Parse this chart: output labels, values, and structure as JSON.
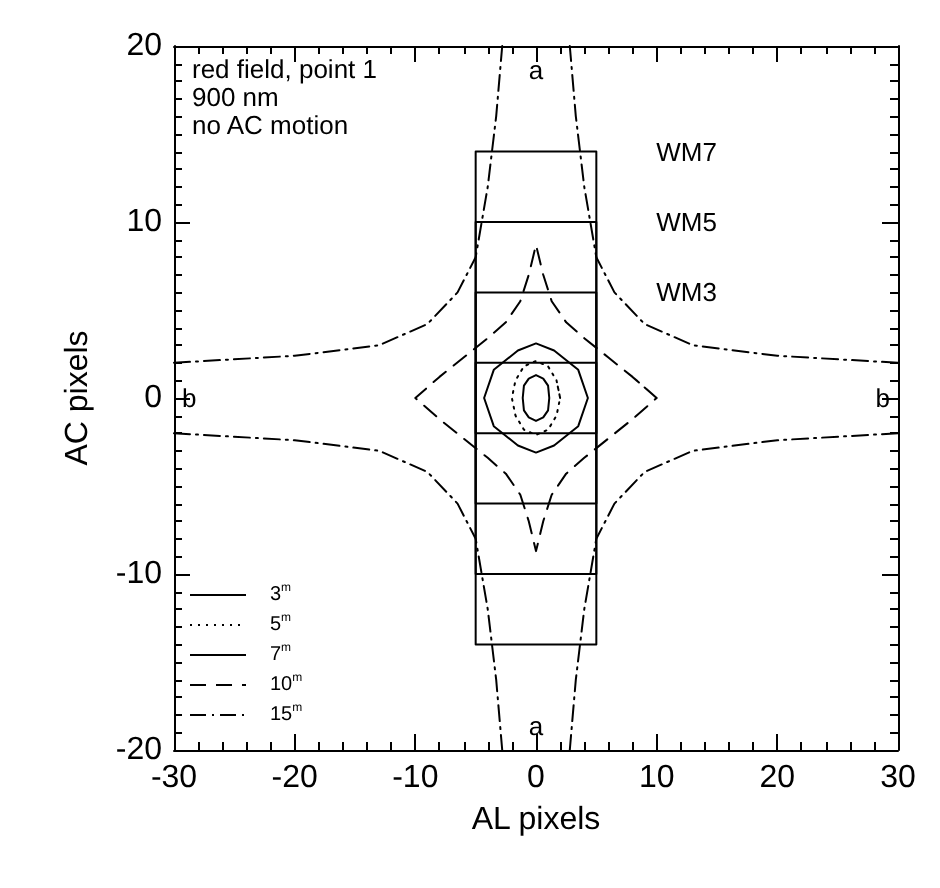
{
  "chart_data": {
    "type": "line",
    "xlabel": "AL pixels",
    "ylabel": "AC pixels",
    "xlim": [
      -30,
      30
    ],
    "ylim": [
      -20,
      20
    ],
    "xticks": [
      -30,
      -20,
      -10,
      0,
      10,
      20,
      30
    ],
    "yticks": [
      -20,
      -10,
      0,
      10,
      20
    ],
    "grid": false,
    "marker": "none",
    "legend": "bottom left",
    "line_style": "solid",
    "annotations": [
      "red field, point 1",
      "900 nm",
      "no AC motion",
      "a",
      "a",
      "b",
      "b"
    ],
    "series": [
      {
        "name": "3$^{m}$",
        "color": "#000000",
        "line_style": "solid",
        "x": [
          1.1,
          1,
          0.6,
          0,
          -0.6,
          -1,
          -1.1,
          -1,
          -0.6,
          0,
          0.6,
          1,
          1.1,
          1
        ],
        "values": [
          0,
          0.7,
          1.1,
          1.3,
          1.1,
          0.7,
          0,
          -0.7,
          -1.1,
          -1.3,
          -1.1,
          -0.7,
          0,
          0.7
        ]
      },
      {
        "name": "5$^{m}$",
        "color": "#000000",
        "line_style": "dotted",
        "x": [
          2,
          1.7,
          1,
          0,
          -1,
          -1.7,
          -2,
          -1.7,
          -1,
          0,
          1,
          1.7,
          2,
          1.7
        ],
        "values": [
          0,
          1,
          1.8,
          2.1,
          1.8,
          1,
          0,
          -1,
          -1.8,
          -2.1,
          -1.8,
          -1,
          0,
          1
        ]
      },
      {
        "name": "7$^{m}$",
        "color": "#000000",
        "line_style": "solid",
        "x": [
          4.3,
          3.5,
          1.5,
          0,
          -1.5,
          -3.5,
          -4.3,
          -3.5,
          -1.5,
          0,
          1.5,
          3.5,
          4.3,
          3.5
        ],
        "values": [
          0,
          1.6,
          2.7,
          3.1,
          2.7,
          1.6,
          0,
          -1.6,
          -2.7,
          -3.1,
          -2.7,
          -1.6,
          0,
          1.6
        ]
      },
      {
        "name": "10$^{m}$",
        "color": "#000000",
        "line_style": "dashed",
        "x": [
          10,
          8,
          6,
          4,
          2.5,
          1.3,
          0.6,
          0,
          -0.6,
          -1.3,
          -2.5,
          -4,
          -6,
          -8,
          -10,
          -8,
          -6,
          -4,
          -2.5,
          -1.3,
          -0.6,
          0,
          0.6,
          1.3,
          2.5,
          4,
          6,
          8,
          10,
          8
        ],
        "values": [
          0,
          1.2,
          2.3,
          3.4,
          4.3,
          5.5,
          7,
          8.7,
          7,
          5.5,
          4.3,
          3.4,
          2.3,
          1.2,
          0,
          -1.2,
          -2.3,
          -3.4,
          -4.3,
          -5.5,
          -7,
          -8.7,
          -7,
          -5.5,
          -4.3,
          -3.4,
          -2.3,
          -1.2,
          0,
          1.2
        ]
      },
      {
        "name": "15$^{m}$",
        "color": "#000000",
        "line_style": "dashdot",
        "x": [
          -30,
          -20,
          -13,
          -9,
          -6.5,
          -5,
          -4,
          -3.3,
          -2.8
        ],
        "values": [
          2,
          2.4,
          3,
          4.2,
          6,
          8,
          12,
          16,
          20
        ]
      },
      {
        "color": "#000000",
        "line_style": "dashdot",
        "x": [
          30,
          20,
          13,
          9,
          6.5,
          5,
          4,
          3.3,
          2.8
        ],
        "values": [
          2,
          2.4,
          3,
          4.2,
          6,
          8,
          12,
          16,
          20
        ]
      },
      {
        "color": "#000000",
        "line_style": "dashdot",
        "x": [
          -30,
          -20,
          -13,
          -9,
          -6.5,
          -5,
          -4,
          -3.3,
          -2.8
        ],
        "values": [
          -2,
          -2.4,
          -3,
          -4.2,
          -6,
          -8,
          -12,
          -16,
          -20
        ]
      },
      {
        "color": "#000000",
        "line_style": "dashdot",
        "x": [
          30,
          20,
          13,
          9,
          6.5,
          5,
          4,
          3.3,
          2.8
        ],
        "values": [
          -2,
          -2.4,
          -3,
          -4.2,
          -6,
          -8,
          -12,
          -16,
          -20
        ]
      },
      {
        "name": "WM7",
        "color": "#000000",
        "x": [
          -5,
          -5,
          5,
          5,
          -5,
          5
        ],
        "values": [
          14,
          -14,
          -14,
          14,
          14,
          14
        ]
      },
      {
        "name": "WM5",
        "color": "#000000",
        "x": [
          -5,
          -5,
          5,
          5,
          -5,
          5
        ],
        "values": [
          10,
          -10,
          -10,
          10,
          10,
          10
        ]
      },
      {
        "name": "WM3",
        "color": "#000000",
        "x": [
          -5,
          -5,
          5,
          5,
          -5,
          5
        ],
        "values": [
          6,
          -6,
          -6,
          6,
          6,
          6
        ]
      },
      {
        "color": "#000000",
        "x": [
          -5,
          -5,
          5,
          5,
          -5,
          5
        ],
        "values": [
          2,
          -2,
          -2,
          2,
          2,
          2
        ]
      }
    ]
  }
}
